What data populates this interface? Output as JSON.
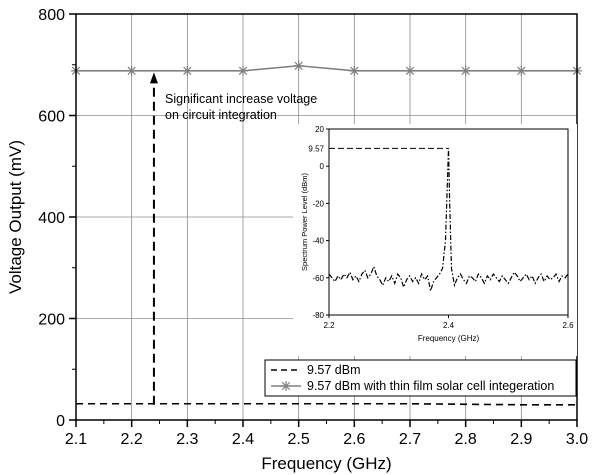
{
  "chart_data": [
    {
      "type": "line",
      "x": [
        2.1,
        2.2,
        2.3,
        2.4,
        2.5,
        2.6,
        2.7,
        2.8,
        2.9,
        3.0
      ],
      "xlabel": "Frequency (GHz)",
      "ylabel": "Voltage Output (mV)",
      "xlim": [
        2.1,
        3.0
      ],
      "ylim": [
        0,
        800
      ],
      "xticks": [
        "2.1",
        "2.2",
        "2.3",
        "2.4",
        "2.5",
        "2.6",
        "2.7",
        "2.8",
        "2.9",
        "3.0"
      ],
      "yticks": [
        "0",
        "200",
        "400",
        "600",
        "800"
      ],
      "grid": true,
      "legend_position": "bottom-right",
      "series": [
        {
          "name": "9.57 dBm",
          "style": "dashed",
          "color": "#000000",
          "values": [
            32,
            32,
            32,
            32,
            32,
            32,
            32,
            31,
            30,
            30
          ]
        },
        {
          "name": "9.57 dBm with thin film solar cell integeration",
          "style": "solid-star",
          "color": "#808080",
          "values": [
            688,
            688,
            688,
            688,
            698,
            688,
            688,
            688,
            688,
            688
          ]
        }
      ],
      "annotation": {
        "line1": "Significant increase voltage",
        "line2": "on circuit integration",
        "arrow_x": 2.24,
        "arrow_from": 30,
        "arrow_to": 685
      }
    },
    {
      "type": "line",
      "xlabel": "Frequency (GHz)",
      "ylabel": "Spectrum Power Level (dBm)",
      "xlim": [
        2.2,
        2.6
      ],
      "ylim": [
        -80,
        20
      ],
      "xticks": [
        "2.2",
        "2.4",
        "2.6"
      ],
      "yticks": [
        "20",
        "0",
        "-20",
        "-40",
        "-60",
        "-80"
      ],
      "peak_label": "9.57",
      "peak": {
        "x": 2.4,
        "y": 9.57
      },
      "series": [
        {
          "style": "dash-dot",
          "color": "#000000",
          "x": [
            2.2,
            2.205,
            2.21,
            2.215,
            2.22,
            2.225,
            2.23,
            2.235,
            2.24,
            2.245,
            2.25,
            2.255,
            2.26,
            2.265,
            2.27,
            2.275,
            2.28,
            2.285,
            2.29,
            2.295,
            2.3,
            2.305,
            2.31,
            2.315,
            2.32,
            2.325,
            2.33,
            2.335,
            2.34,
            2.345,
            2.35,
            2.355,
            2.36,
            2.365,
            2.37,
            2.375,
            2.38,
            2.385,
            2.39,
            2.395,
            2.398,
            2.4,
            2.402,
            2.405,
            2.41,
            2.415,
            2.42,
            2.425,
            2.43,
            2.435,
            2.44,
            2.445,
            2.45,
            2.455,
            2.46,
            2.465,
            2.47,
            2.475,
            2.48,
            2.485,
            2.49,
            2.495,
            2.5,
            2.505,
            2.51,
            2.515,
            2.52,
            2.525,
            2.53,
            2.535,
            2.54,
            2.545,
            2.55,
            2.555,
            2.56,
            2.565,
            2.57,
            2.575,
            2.58,
            2.585,
            2.59,
            2.595,
            2.6
          ],
          "values": [
            -58,
            -60,
            -62,
            -59,
            -61,
            -58,
            -60,
            -57,
            -61,
            -59,
            -62,
            -58,
            -56,
            -60,
            -58,
            -54,
            -59,
            -61,
            -64,
            -60,
            -62,
            -59,
            -63,
            -58,
            -60,
            -65,
            -61,
            -59,
            -62,
            -60,
            -63,
            -58,
            -61,
            -59,
            -67,
            -62,
            -60,
            -58,
            -55,
            -40,
            -10,
            9.57,
            -20,
            -55,
            -64,
            -60,
            -58,
            -61,
            -63,
            -59,
            -60,
            -62,
            -58,
            -60,
            -63,
            -59,
            -61,
            -58,
            -60,
            -62,
            -59,
            -61,
            -63,
            -60,
            -57,
            -59,
            -62,
            -60,
            -58,
            -61,
            -59,
            -63,
            -60,
            -58,
            -62,
            -59,
            -61,
            -60,
            -58,
            -62,
            -59,
            -60,
            -58
          ]
        }
      ]
    }
  ]
}
